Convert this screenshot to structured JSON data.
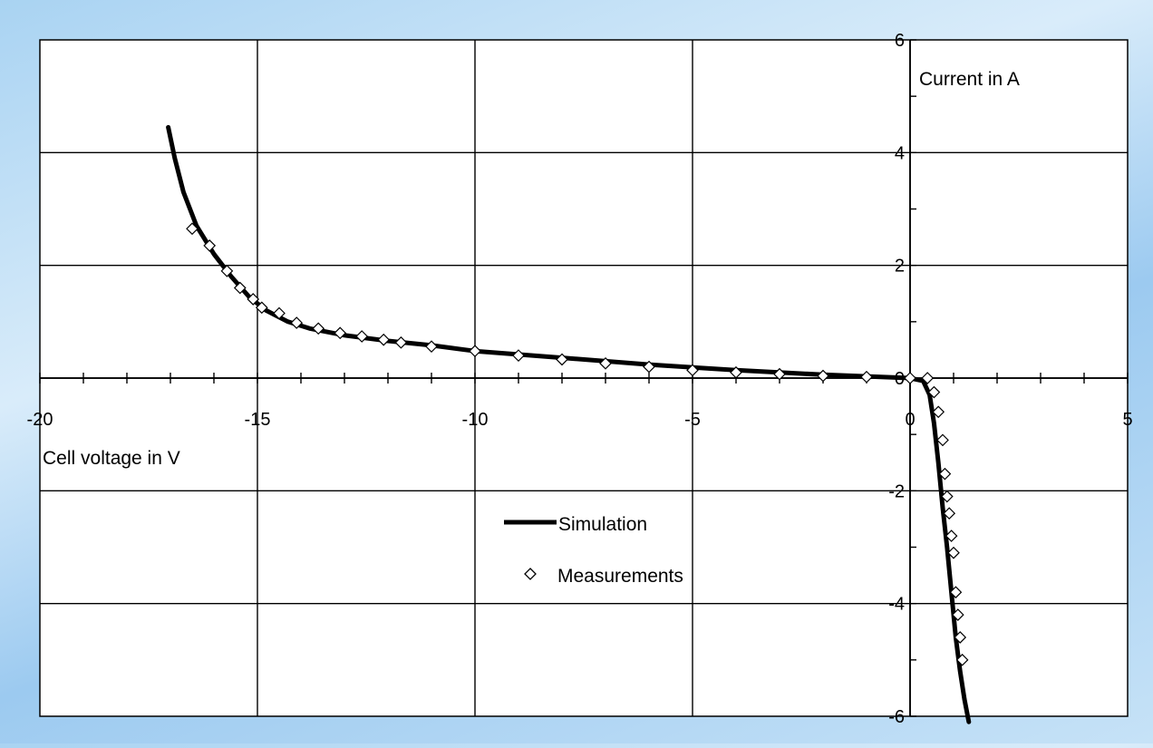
{
  "chart_data": {
    "type": "scatter",
    "title": "",
    "xlabel": "Cell voltage in V",
    "ylabel": "Current in A",
    "xlim": [
      -20,
      5
    ],
    "ylim": [
      -6,
      6
    ],
    "x_ticks": [
      -20,
      -15,
      -10,
      -5,
      0,
      5
    ],
    "y_ticks": [
      -6,
      -4,
      -2,
      0,
      2,
      4,
      6
    ],
    "x_tick_labels": [
      "-20",
      "-15",
      "-10",
      "-5",
      "0",
      "5"
    ],
    "y_tick_labels": [
      "-6",
      "-4",
      "-2",
      "0",
      "2",
      "4",
      "6"
    ],
    "x_minor_step": 1,
    "y_minor_step": 1,
    "grid": true,
    "legend_position": "center",
    "colors": {
      "plot_bg": "#ffffff",
      "grid": "#000000",
      "curve": "#000000",
      "marker_fill": "#ffffff",
      "marker_stroke": "#000000"
    },
    "series": [
      {
        "name": "Simulation",
        "kind": "line",
        "x": [
          -17.05,
          -16.9,
          -16.7,
          -16.4,
          -16.0,
          -15.6,
          -15.2,
          -14.8,
          -14.3,
          -13.8,
          -13.0,
          -12.0,
          -11.0,
          -10.0,
          -8.0,
          -6.0,
          -4.0,
          -2.0,
          0.0,
          0.3,
          0.45,
          0.55,
          0.65,
          0.75,
          0.85,
          0.95,
          1.05,
          1.15,
          1.25,
          1.35
        ],
        "y": [
          4.45,
          3.9,
          3.3,
          2.7,
          2.2,
          1.8,
          1.45,
          1.2,
          1.0,
          0.88,
          0.76,
          0.66,
          0.58,
          0.48,
          0.36,
          0.24,
          0.14,
          0.06,
          0.0,
          -0.05,
          -0.3,
          -0.8,
          -1.5,
          -2.3,
          -3.0,
          -3.8,
          -4.6,
          -5.2,
          -5.7,
          -6.1
        ]
      },
      {
        "name": "Measurements",
        "kind": "scatter",
        "x": [
          -16.5,
          -16.1,
          -15.7,
          -15.4,
          -15.1,
          -14.9,
          -14.5,
          -14.1,
          -13.6,
          -13.1,
          -12.6,
          -12.1,
          -11.7,
          -11.0,
          -10.0,
          -9.0,
          -8.0,
          -7.0,
          -6.0,
          -5.0,
          -4.0,
          -3.0,
          -2.0,
          -1.0,
          0.0,
          0.4,
          0.55,
          0.65,
          0.75,
          0.8,
          0.85,
          0.9,
          0.95,
          1.0,
          1.05,
          1.1,
          1.15,
          1.2
        ],
        "y": [
          2.65,
          2.35,
          1.9,
          1.6,
          1.4,
          1.25,
          1.15,
          0.98,
          0.88,
          0.8,
          0.74,
          0.68,
          0.63,
          0.56,
          0.48,
          0.4,
          0.33,
          0.26,
          0.2,
          0.14,
          0.1,
          0.07,
          0.04,
          0.02,
          0.0,
          0.0,
          -0.25,
          -0.6,
          -1.1,
          -1.7,
          -2.1,
          -2.4,
          -2.8,
          -3.1,
          -3.8,
          -4.2,
          -4.6,
          -5.0
        ]
      }
    ]
  }
}
